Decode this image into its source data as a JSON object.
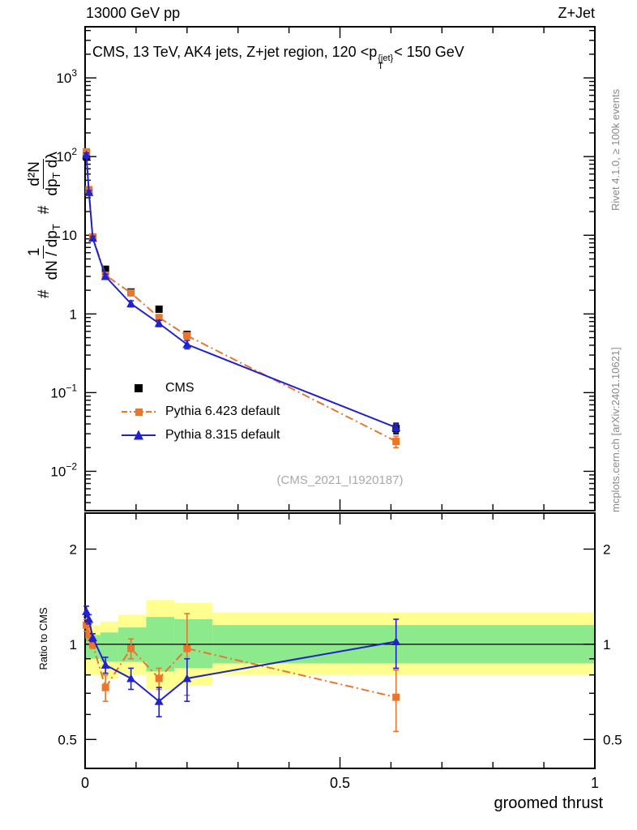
{
  "colors": {
    "cms": "#000000",
    "pythia6": "#e8762d",
    "pythia8": "#2222cc",
    "band_green": "#8ce98c",
    "band_yellow": "#ffff8f"
  },
  "header": {
    "left": "13000 GeV pp",
    "right": "Z+Jet"
  },
  "title": {
    "pre": "CMS, 13 TeV, AK4 jets, Z+jet region, 120 <p",
    "sup": "{jet}",
    "sub": "T",
    "post": "< 150 GeV"
  },
  "side": {
    "top_right": "Rivet 4.1.0, ≥ 100k events",
    "bottom_right": "mcplots.cern.ch [arXiv:2401.10621]"
  },
  "watermark": "(CMS_2021_I1920187)",
  "legend": {
    "items": [
      {
        "label": "CMS"
      },
      {
        "label": "Pythia 6.423 default"
      },
      {
        "label": "Pythia 8.315 default"
      }
    ]
  },
  "axes": {
    "xlabel": "groomed thrust",
    "ratio_ylabel": "Ratio to CMS",
    "ylabel": {
      "hash1": "#",
      "frac1_num": "1",
      "frac1_den": "dN / dp",
      "frac1_den_sub": "T",
      "hash2": "#",
      "frac2_num": "d²N",
      "frac2_den_a": "dp",
      "frac2_den_sub": "T",
      "frac2_den_b": " dλ"
    }
  },
  "chart_data": {
    "type": "line",
    "title": "CMS, 13 TeV, AK4 jets, Z+jet region, 120 < pT{jet} < 150 GeV",
    "xlabel": "groomed thrust",
    "xlim": [
      0,
      1
    ],
    "xticks": {
      "major": [
        0,
        0.5,
        1
      ],
      "labels": [
        "0",
        "0.5",
        "1"
      ],
      "minor_step": 0.1
    },
    "main": {
      "yscale": "log",
      "ylog_range": [
        -2.5,
        3.65
      ],
      "ytick_exponents": [
        3,
        2,
        1,
        0,
        -1,
        -2
      ],
      "x": [
        0.0025,
        0.0075,
        0.015,
        0.04,
        0.09,
        0.145,
        0.2,
        0.61
      ],
      "series": [
        {
          "name": "CMS",
          "color": "cms",
          "marker": "square",
          "line": "none",
          "y": [
            100,
            36,
            9.5,
            3.7,
            1.9,
            1.15,
            0.55,
            0.035
          ],
          "yerr": [
            10,
            3,
            0.8,
            0.3,
            0.15,
            0.1,
            0.05,
            0.005
          ]
        },
        {
          "name": "Pythia 6.423 default",
          "color": "pythia6",
          "marker": "square",
          "line": "dashdot",
          "y": [
            115,
            38,
            9.5,
            3.1,
            1.85,
            0.9,
            0.53,
            0.024
          ],
          "yerr": [
            6,
            2,
            0.5,
            0.2,
            0.12,
            0.07,
            0.05,
            0.004
          ]
        },
        {
          "name": "Pythia 8.315 default",
          "color": "pythia8",
          "marker": "triangle",
          "line": "solid",
          "y": [
            105,
            35,
            9.2,
            3.0,
            1.35,
            0.76,
            0.41,
            0.036
          ],
          "yerr": [
            6,
            2,
            0.5,
            0.2,
            0.12,
            0.07,
            0.05,
            0.005
          ]
        }
      ]
    },
    "ratio": {
      "yscale": "log",
      "ylim": [
        0.405,
        2.6
      ],
      "yticks": [
        0.5,
        1,
        2
      ],
      "yticks_minor": [
        0.6,
        0.7,
        0.8,
        0.9
      ],
      "reference_line": 1,
      "x": [
        0.0025,
        0.0075,
        0.015,
        0.04,
        0.09,
        0.145,
        0.2,
        0.61
      ],
      "series": [
        {
          "name": "Pythia 6.423 default",
          "color": "pythia6",
          "marker": "square",
          "line": "dashdot",
          "y": [
            1.15,
            1.07,
            1.0,
            0.73,
            0.97,
            0.78,
            0.97,
            0.68
          ],
          "yerr": [
            0.05,
            0.04,
            0.03,
            0.07,
            0.07,
            0.06,
            0.28,
            0.15
          ]
        },
        {
          "name": "Pythia 8.315 default",
          "color": "pythia8",
          "marker": "triangle",
          "line": "solid",
          "y": [
            1.27,
            1.2,
            1.05,
            0.86,
            0.78,
            0.66,
            0.78,
            1.02
          ],
          "yerr": [
            0.05,
            0.04,
            0.03,
            0.05,
            0.06,
            0.07,
            0.12,
            0.18
          ]
        }
      ],
      "bands": {
        "yellow": [
          {
            "x0": 0,
            "x1": 0.03,
            "lo": 0.8,
            "hi": 1.15
          },
          {
            "x0": 0.03,
            "x1": 0.065,
            "lo": 0.78,
            "hi": 1.18
          },
          {
            "x0": 0.065,
            "x1": 0.12,
            "lo": 0.8,
            "hi": 1.24
          },
          {
            "x0": 0.12,
            "x1": 0.175,
            "lo": 0.72,
            "hi": 1.38
          },
          {
            "x0": 0.175,
            "x1": 0.25,
            "lo": 0.74,
            "hi": 1.35
          },
          {
            "x0": 0.25,
            "x1": 1.0,
            "lo": 0.8,
            "hi": 1.26
          }
        ],
        "green": [
          {
            "x0": 0,
            "x1": 0.03,
            "lo": 0.9,
            "hi": 1.07
          },
          {
            "x0": 0.03,
            "x1": 0.065,
            "lo": 0.88,
            "hi": 1.09
          },
          {
            "x0": 0.065,
            "x1": 0.12,
            "lo": 0.88,
            "hi": 1.13
          },
          {
            "x0": 0.12,
            "x1": 0.175,
            "lo": 0.82,
            "hi": 1.22
          },
          {
            "x0": 0.175,
            "x1": 0.25,
            "lo": 0.84,
            "hi": 1.2
          },
          {
            "x0": 0.25,
            "x1": 1.0,
            "lo": 0.87,
            "hi": 1.15
          }
        ]
      }
    }
  }
}
